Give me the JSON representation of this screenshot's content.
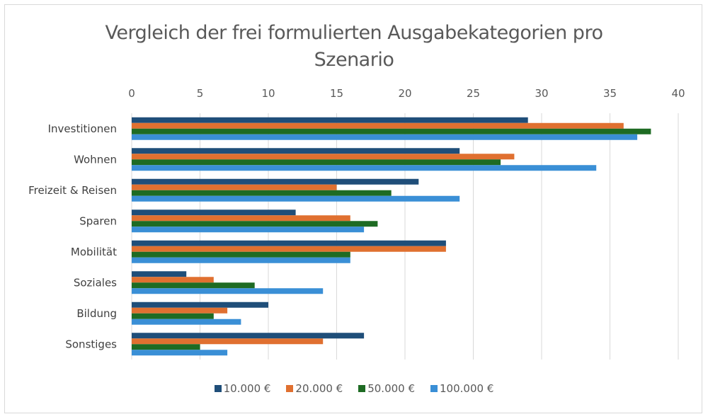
{
  "chart_data": {
    "type": "bar",
    "orientation": "horizontal",
    "title": "Vergleich der frei formulierten Ausgabekategorien pro Szenario",
    "title_lines": [
      "Vergleich der frei formulierten Ausgabekategorien pro",
      "Szenario"
    ],
    "xlabel": "",
    "ylabel": "",
    "xlim": [
      0,
      40
    ],
    "x_ticks": [
      "0",
      "5",
      "10",
      "15",
      "20",
      "25",
      "30",
      "35",
      "40"
    ],
    "x_axis_position": "top",
    "grid": true,
    "legend_position": "bottom",
    "categories": [
      "Investitionen",
      "Wohnen",
      "Freizeit & Reisen",
      "Sparen",
      "Mobilität",
      "Soziales",
      "Bildung",
      "Sonstiges"
    ],
    "series": [
      {
        "name": "10.000 €",
        "color": "#1f4e79",
        "values": [
          29,
          24,
          21,
          12,
          23,
          4,
          10,
          17
        ]
      },
      {
        "name": "20.000 €",
        "color": "#e07030",
        "values": [
          36,
          28,
          15,
          16,
          23,
          6,
          7,
          14
        ]
      },
      {
        "name": "50.000 €",
        "color": "#1e6b23",
        "values": [
          38,
          27,
          19,
          18,
          16,
          9,
          6,
          5
        ]
      },
      {
        "name": "100.000 €",
        "color": "#3a8fd6",
        "values": [
          37,
          34,
          24,
          17,
          16,
          14,
          8,
          7
        ]
      }
    ]
  }
}
